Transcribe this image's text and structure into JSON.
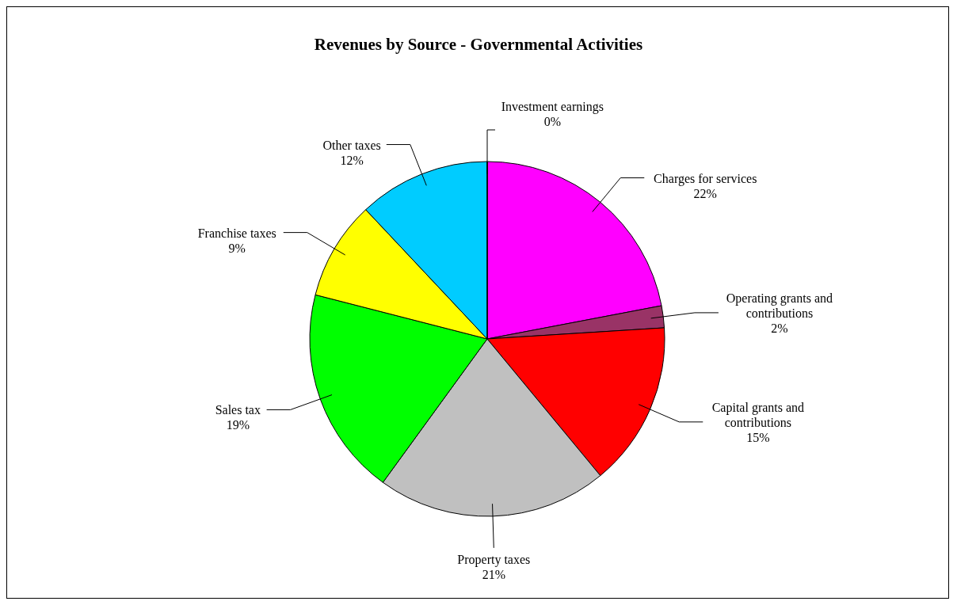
{
  "chart_data": {
    "type": "pie",
    "title": "Revenues by Source - Governmental Activities",
    "categories": [
      "Charges for services",
      "Operating grants and contributions",
      "Capital grants and contributions",
      "Property taxes",
      "Sales tax",
      "Franchise taxes",
      "Other taxes",
      "Investment earnings"
    ],
    "values": [
      22,
      2,
      15,
      21,
      19,
      9,
      12,
      0
    ],
    "value_labels": [
      "22%",
      "2%",
      "15%",
      "21%",
      "19%",
      "9%",
      "12%",
      "0%"
    ],
    "colors": [
      "#ff00ff",
      "#993366",
      "#ff0000",
      "#c0c0c0",
      "#00ff00",
      "#ffff00",
      "#00ccff",
      "#000000"
    ]
  }
}
